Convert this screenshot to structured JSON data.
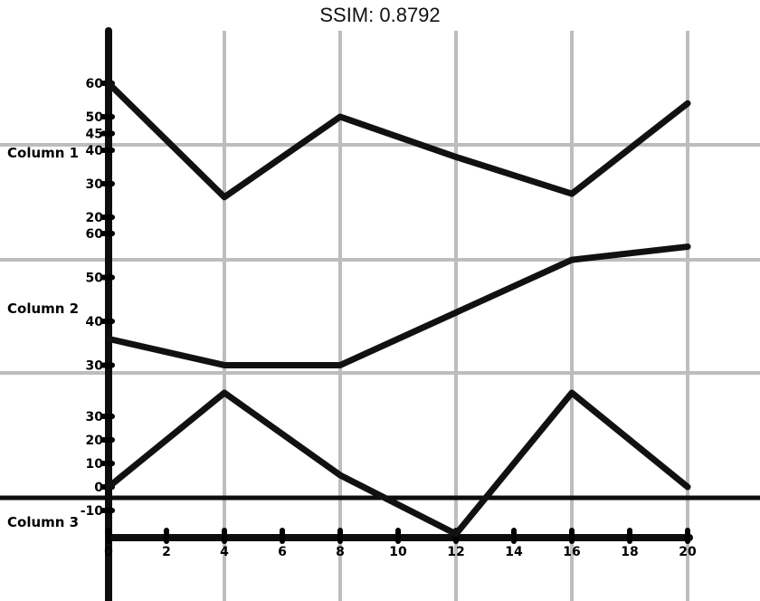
{
  "header": {
    "title": "SSIM: 0.8792"
  },
  "chart_data": {
    "type": "line",
    "x": [
      0,
      4,
      8,
      12,
      16,
      20
    ],
    "x_ticks": [
      "0",
      "2",
      "4",
      "6",
      "8",
      "10",
      "12",
      "14",
      "16",
      "18",
      "20"
    ],
    "xlim": [
      0,
      20
    ],
    "grid": true,
    "series": [
      {
        "name": "Column 1",
        "values": [
          60,
          26,
          50,
          38,
          27,
          54
        ],
        "ylim": [
          20,
          60
        ],
        "y_ticks": [
          "20",
          "30",
          "40",
          "45",
          "50",
          "60"
        ]
      },
      {
        "name": "Column 2",
        "values": [
          36,
          30,
          30,
          42,
          54,
          57
        ],
        "ylim": [
          27,
          60
        ],
        "y_ticks": [
          "30",
          "40",
          "50",
          "60"
        ]
      },
      {
        "name": "Column 3",
        "values": [
          0,
          40,
          5,
          -20,
          40,
          0
        ],
        "ylim": [
          -20,
          40
        ],
        "y_ticks": [
          "-10",
          "0",
          "10",
          "20",
          "30"
        ]
      }
    ]
  }
}
